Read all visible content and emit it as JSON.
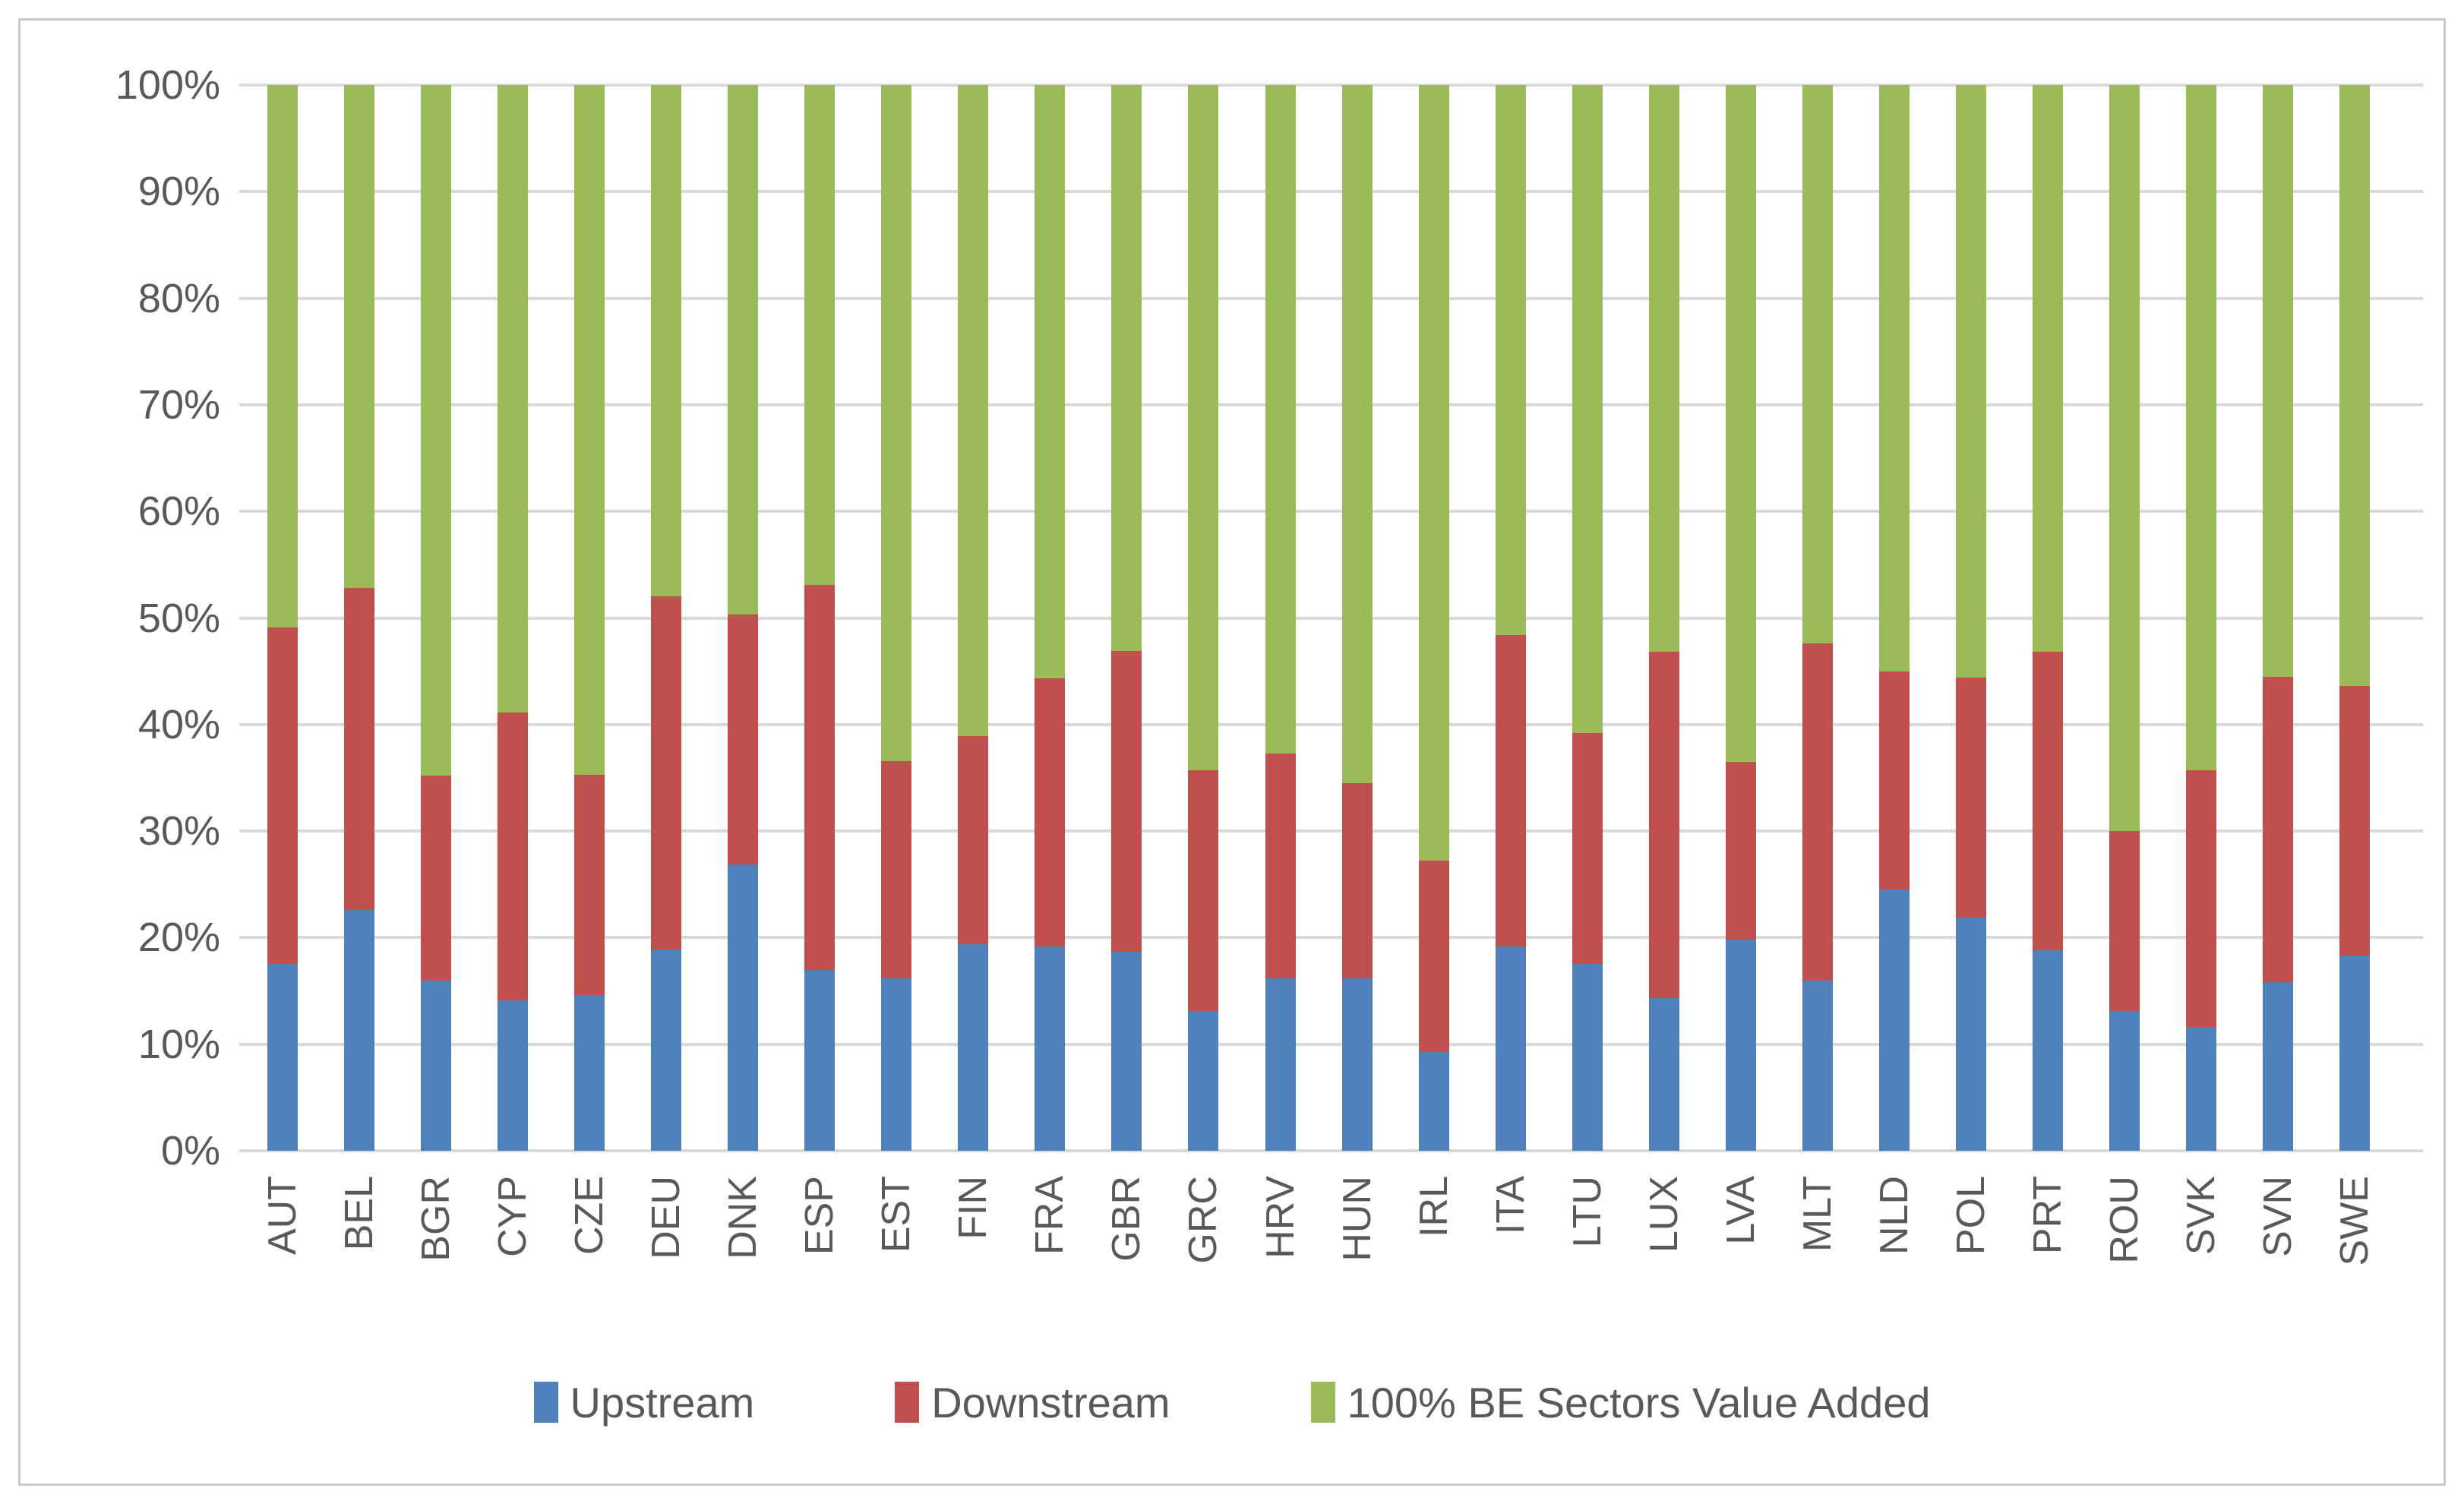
{
  "chart_data": {
    "type": "bar",
    "subtype": "stacked-100",
    "orientation": "vertical",
    "title": "",
    "xlabel": "",
    "ylabel": "",
    "ylim": [
      0,
      100
    ],
    "grid": true,
    "legend_position": "bottom",
    "y_ticks": [
      {
        "label": "100%",
        "value": 100
      },
      {
        "label": "90%",
        "value": 90
      },
      {
        "label": "80%",
        "value": 80
      },
      {
        "label": "70%",
        "value": 70
      },
      {
        "label": "60%",
        "value": 60
      },
      {
        "label": "50%",
        "value": 50
      },
      {
        "label": "40%",
        "value": 40
      },
      {
        "label": "30%",
        "value": 30
      },
      {
        "label": "20%",
        "value": 20
      },
      {
        "label": "10%",
        "value": 10
      },
      {
        "label": "0%",
        "value": 0
      }
    ],
    "categories": [
      "AUT",
      "BEL",
      "BGR",
      "CYP",
      "CZE",
      "DEU",
      "DNK",
      "ESP",
      "EST",
      "FIN",
      "FRA",
      "GBR",
      "GRC",
      "HRV",
      "HUN",
      "IRL",
      "ITA",
      "LTU",
      "LUX",
      "LVA",
      "MLT",
      "NLD",
      "POL",
      "PRT",
      "ROU",
      "SVK",
      "SVN",
      "SWE"
    ],
    "series": [
      {
        "name": "Upstream",
        "color": "#4f81bd",
        "values": [
          17.5,
          22.6,
          16.0,
          14.1,
          14.6,
          18.9,
          26.9,
          17.0,
          16.2,
          19.4,
          19.2,
          18.7,
          13.1,
          16.2,
          16.2,
          9.3,
          19.2,
          17.5,
          14.3,
          19.8,
          16.0,
          24.5,
          21.9,
          18.8,
          13.1,
          11.6,
          15.8,
          18.3
        ]
      },
      {
        "name": "Downstream",
        "color": "#c0504d",
        "values": [
          31.6,
          30.2,
          19.2,
          27.0,
          20.7,
          33.1,
          23.4,
          36.1,
          20.4,
          19.5,
          25.1,
          28.2,
          22.6,
          21.1,
          18.3,
          17.9,
          29.2,
          21.7,
          32.5,
          16.7,
          31.6,
          20.5,
          22.5,
          28.0,
          16.9,
          24.1,
          28.7,
          25.3
        ]
      },
      {
        "name": "100% BE Sectors Value Added",
        "color": "#9bbb59",
        "values": [
          50.9,
          47.2,
          64.8,
          58.9,
          64.7,
          48.0,
          49.7,
          46.9,
          63.4,
          61.1,
          55.7,
          53.1,
          64.3,
          62.7,
          65.5,
          72.8,
          51.6,
          60.8,
          53.2,
          63.5,
          52.4,
          55.0,
          55.6,
          53.2,
          70.0,
          64.3,
          55.5,
          56.4
        ]
      }
    ],
    "colors": {
      "gridline": "#d9d9d9",
      "tick_text": "#595959",
      "frame_border": "#c9c9c9",
      "background": "#ffffff"
    }
  }
}
